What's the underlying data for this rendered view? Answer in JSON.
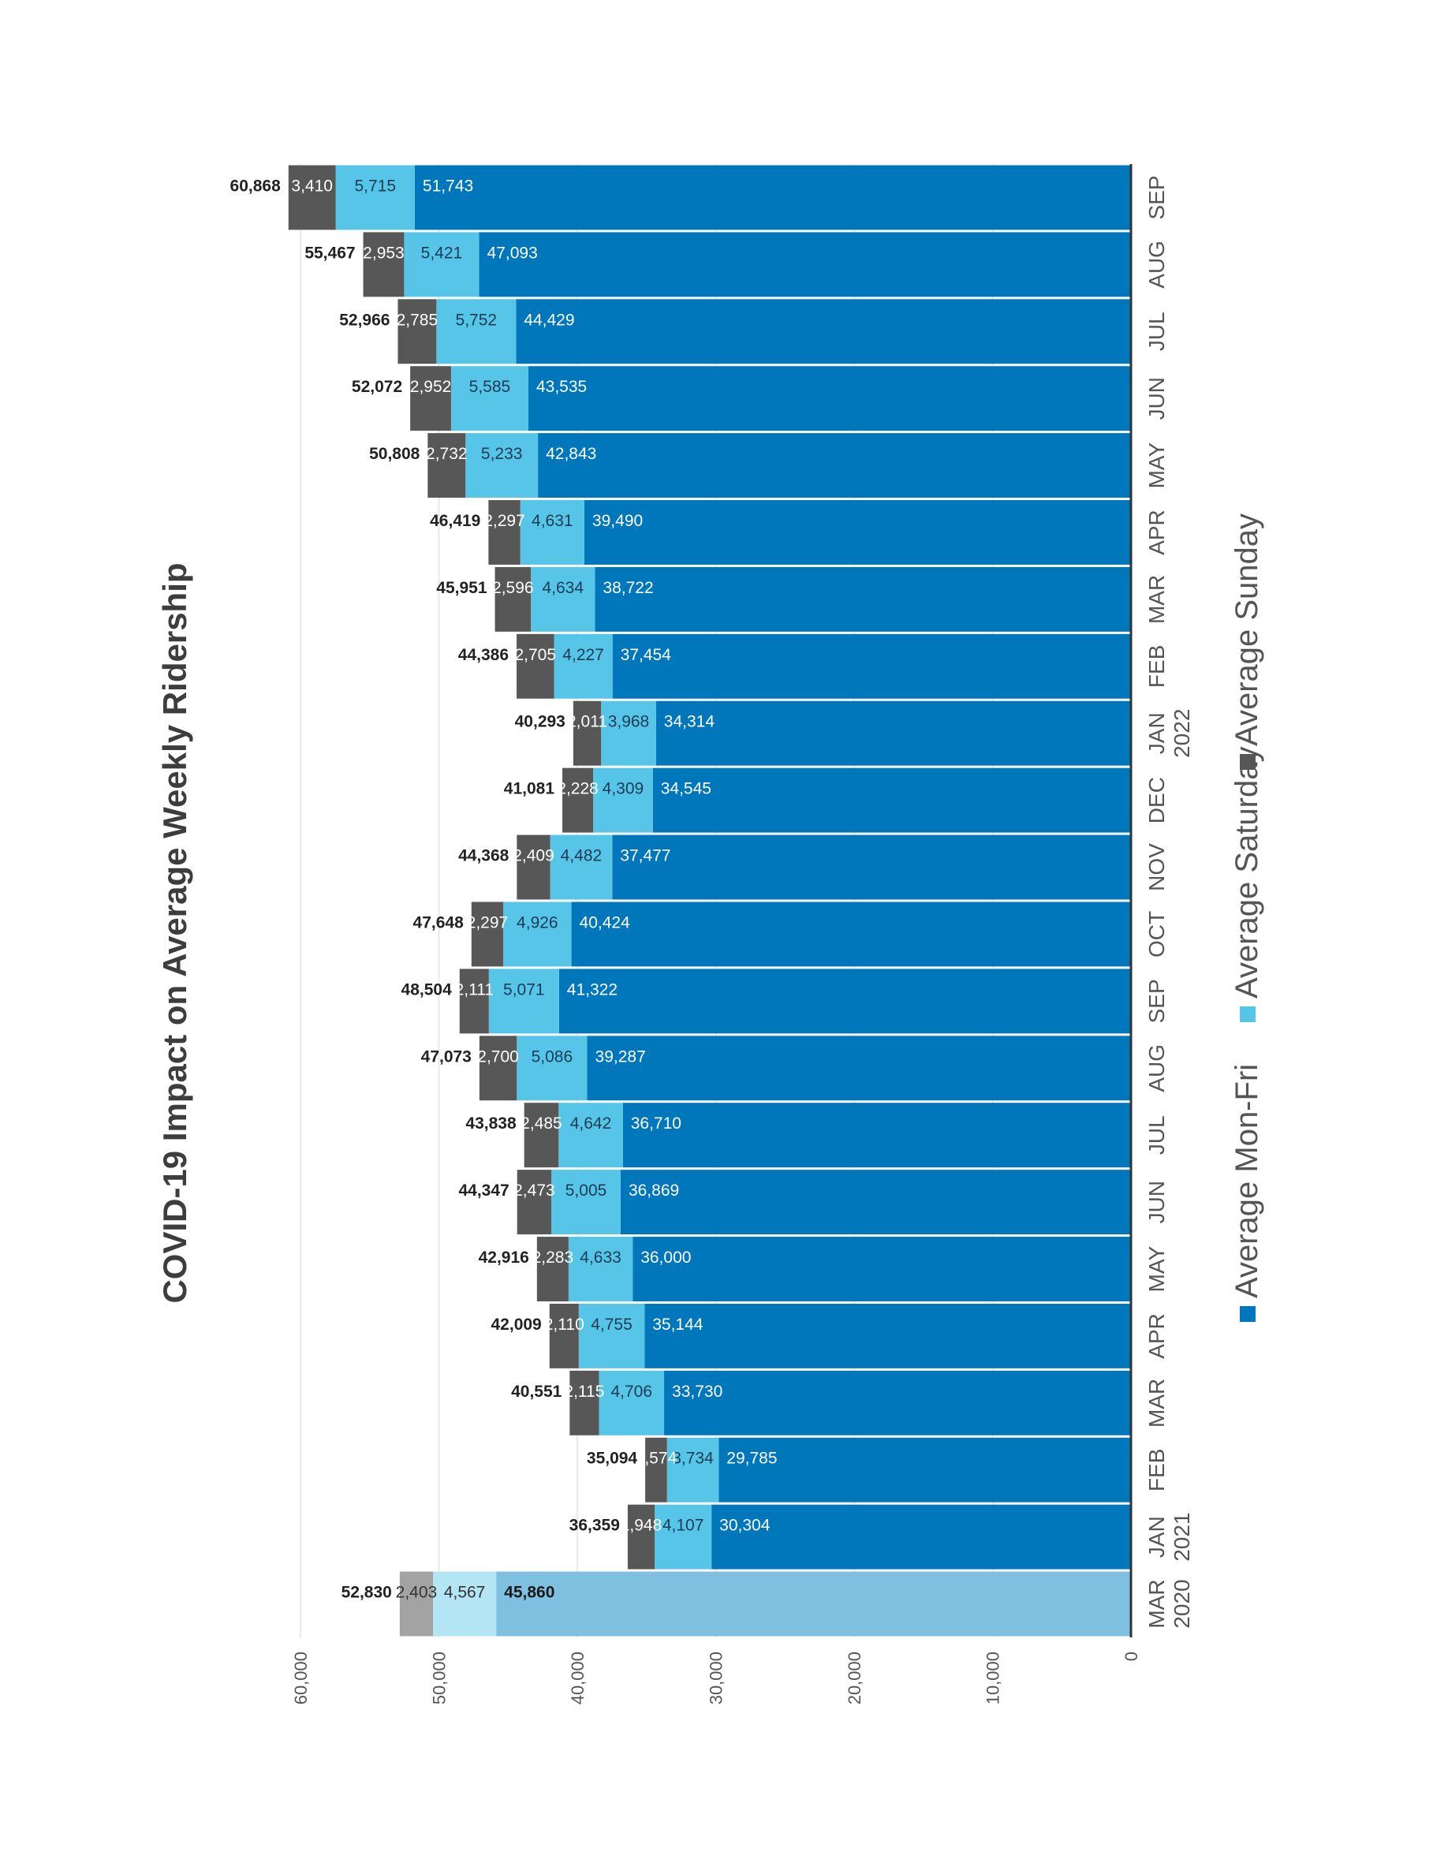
{
  "chart_data": {
    "type": "bar",
    "stacked": true,
    "orientation": "rotated-90",
    "title": "COVID-19 Impact on Average Weekly Ridership",
    "ylim": [
      0,
      60000
    ],
    "yticks": [
      "0",
      "10,000",
      "20,000",
      "30,000",
      "40,000",
      "50,000",
      "60,000"
    ],
    "grid": true,
    "legend_position": "bottom",
    "categories": [
      {
        "month": "MAR",
        "year": "2020"
      },
      {
        "month": "JAN",
        "year": "2021"
      },
      {
        "month": "FEB",
        "year": ""
      },
      {
        "month": "MAR",
        "year": ""
      },
      {
        "month": "APR",
        "year": ""
      },
      {
        "month": "MAY",
        "year": ""
      },
      {
        "month": "JUN",
        "year": ""
      },
      {
        "month": "JUL",
        "year": ""
      },
      {
        "month": "AUG",
        "year": ""
      },
      {
        "month": "SEP",
        "year": ""
      },
      {
        "month": "OCT",
        "year": ""
      },
      {
        "month": "NOV",
        "year": ""
      },
      {
        "month": "DEC",
        "year": ""
      },
      {
        "month": "JAN",
        "year": "2022"
      },
      {
        "month": "FEB",
        "year": ""
      },
      {
        "month": "MAR",
        "year": ""
      },
      {
        "month": "APR",
        "year": ""
      },
      {
        "month": "MAY",
        "year": ""
      },
      {
        "month": "JUN",
        "year": ""
      },
      {
        "month": "JUL",
        "year": ""
      },
      {
        "month": "AUG",
        "year": ""
      },
      {
        "month": "SEP",
        "year": ""
      }
    ],
    "series": [
      {
        "name": "Average Mon-Fri",
        "color": "#0077bb",
        "values": [
          45860,
          30304,
          29785,
          33730,
          35144,
          36000,
          36869,
          36710,
          39287,
          41322,
          40424,
          37477,
          34545,
          34314,
          37454,
          38722,
          39490,
          42843,
          43535,
          44429,
          47093,
          51743
        ],
        "labels": [
          "45,860",
          "30,304",
          "29,785",
          "33,730",
          "35,144",
          "36,000",
          "36,869",
          "36,710",
          "39,287",
          "41,322",
          "40,424",
          "37,477",
          "34,545",
          "34,314",
          "37,454",
          "38,722",
          "39,490",
          "42,843",
          "43,535",
          "44,429",
          "47,093",
          "51,743"
        ]
      },
      {
        "name": "Average Saturday",
        "color": "#56c5e8",
        "values": [
          4567,
          4107,
          3734,
          4706,
          4755,
          4633,
          5005,
          4642,
          5086,
          5071,
          4926,
          4482,
          4309,
          3968,
          4227,
          4634,
          4631,
          5233,
          5585,
          5752,
          5421,
          5715
        ],
        "labels": [
          "4,567",
          "4,107",
          "3,734",
          "4,706",
          "4,755",
          "4,633",
          "5,005",
          "4,642",
          "5,086",
          "5,071",
          "4,926",
          "4,482",
          "4,309",
          "3,968",
          "4,227",
          "4,634",
          "4,631",
          "5,233",
          "5,585",
          "5,752",
          "5,421",
          "5,715"
        ]
      },
      {
        "name": "Average Sunday",
        "color": "#575757",
        "values": [
          2403,
          1948,
          1574,
          2115,
          2110,
          2283,
          2473,
          2485,
          2700,
          2111,
          2297,
          2409,
          2228,
          2011,
          2705,
          2596,
          2297,
          2732,
          2952,
          2785,
          2953,
          3410
        ],
        "labels": [
          "2,403",
          "1,948",
          "1,574",
          "2,115",
          "2,110",
          "2,283",
          "2,473",
          "2,485",
          "2,700",
          "2,111",
          "2,297",
          "2,409",
          "2,228",
          "2,011",
          "2,705",
          "2,596",
          "2,297",
          "2,732",
          "2,952",
          "2,785",
          "2,953",
          "3,410"
        ]
      }
    ],
    "totals": [
      "52,830",
      "36,359",
      "35,094",
      "40,551",
      "42,009",
      "42,916",
      "44,347",
      "43,838",
      "47,073",
      "48,504",
      "47,648",
      "44,368",
      "41,081",
      "40,293",
      "44,386",
      "45,951",
      "46,419",
      "50,808",
      "52,072",
      "52,966",
      "55,467",
      "60,868"
    ],
    "baseline_index": 0,
    "baseline_colors": [
      "#7fbfe0",
      "#b3e5f5",
      "#a3a3a3"
    ]
  }
}
